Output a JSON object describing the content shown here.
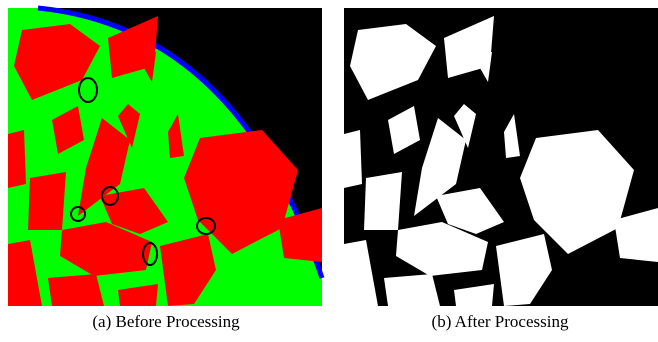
{
  "figure": {
    "panels": [
      {
        "caption": "(a) Before Processing"
      },
      {
        "caption": "(b) After Processing"
      }
    ]
  }
}
